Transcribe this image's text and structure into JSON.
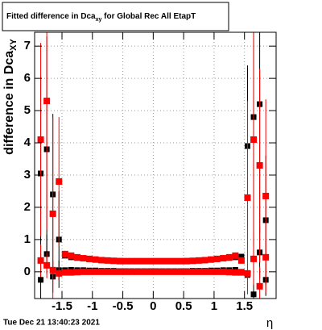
{
  "chart_data": {
    "type": "errorbar",
    "title_main": "Fitted difference in Dca",
    "title_sub": "xy",
    "title_rest": " for Global Rec All EtapT",
    "y_label_main": "difference in Dca",
    "y_label_sub": "XY",
    "x_label": "η",
    "x": [
      -1.85,
      -1.75,
      -1.65,
      -1.55,
      -1.45,
      -1.35,
      -1.25,
      -1.15,
      -1.05,
      -0.95,
      -0.85,
      -0.75,
      -0.65,
      -0.55,
      -0.45,
      -0.35,
      -0.25,
      -0.15,
      -0.05,
      0.05,
      0.15,
      0.25,
      0.35,
      0.45,
      0.55,
      0.65,
      0.75,
      0.85,
      0.95,
      1.05,
      1.15,
      1.25,
      1.35,
      1.45,
      1.55,
      1.65,
      1.75,
      1.85
    ],
    "series": [
      {
        "color": "#000000",
        "values": [
          3.05,
          3.8,
          2.4,
          1.0,
          0.5,
          0.45,
          0.43,
          0.41,
          0.39,
          0.37,
          0.36,
          0.35,
          0.34,
          0.34,
          0.33,
          0.33,
          0.33,
          0.33,
          0.33,
          0.33,
          0.33,
          0.33,
          0.33,
          0.33,
          0.34,
          0.34,
          0.35,
          0.36,
          0.37,
          0.39,
          0.41,
          0.43,
          0.45,
          0.47,
          3.9,
          4.8,
          5.2,
          1.6
        ],
        "errors": [
          3.0,
          3.5,
          2.5,
          1.5,
          0.05,
          0.03,
          0.03,
          0.03,
          0.03,
          0.03,
          0.03,
          0.03,
          0.03,
          0.03,
          0.03,
          0.03,
          0.03,
          0.03,
          0.03,
          0.03,
          0.03,
          0.03,
          0.03,
          0.03,
          0.03,
          0.03,
          0.03,
          0.03,
          0.03,
          0.03,
          0.03,
          0.03,
          0.03,
          0.05,
          2.5,
          4.0,
          4.0,
          2.0
        ]
      },
      {
        "color": "#000000",
        "values": [
          -0.25,
          0.55,
          -0.15,
          0.05,
          0.05,
          0.06,
          0.05,
          0.05,
          0.04,
          0.04,
          0.03,
          0.03,
          0.03,
          0.02,
          0.02,
          0.02,
          0.02,
          0.02,
          0.02,
          0.02,
          0.02,
          0.02,
          0.02,
          0.02,
          0.02,
          0.03,
          0.03,
          0.03,
          0.04,
          0.04,
          0.05,
          0.05,
          0.06,
          0.0,
          -0.1,
          -0.7,
          0.6,
          -0.25
        ],
        "errors": [
          0.8,
          0.6,
          0.5,
          0.3,
          0.03,
          0.02,
          0.02,
          0.02,
          0.02,
          0.02,
          0.02,
          0.02,
          0.02,
          0.02,
          0.02,
          0.02,
          0.02,
          0.02,
          0.02,
          0.02,
          0.02,
          0.02,
          0.02,
          0.02,
          0.02,
          0.02,
          0.02,
          0.02,
          0.02,
          0.02,
          0.02,
          0.02,
          0.02,
          0.04,
          0.5,
          1.0,
          0.8,
          0.5
        ]
      },
      {
        "color": "#ff0000",
        "values": [
          4.1,
          5.3,
          1.8,
          2.8,
          0.55,
          0.5,
          0.45,
          0.42,
          0.4,
          0.38,
          0.36,
          0.35,
          0.34,
          0.33,
          0.33,
          0.33,
          0.33,
          0.33,
          0.33,
          0.33,
          0.33,
          0.33,
          0.33,
          0.33,
          0.33,
          0.34,
          0.35,
          0.36,
          0.38,
          0.4,
          0.42,
          0.45,
          0.5,
          0.35,
          2.3,
          4.1,
          3.3,
          2.35
        ],
        "errors": [
          3.0,
          4.0,
          3.0,
          2.0,
          0.1,
          0.03,
          0.03,
          0.03,
          0.03,
          0.03,
          0.03,
          0.03,
          0.03,
          0.03,
          0.03,
          0.03,
          0.03,
          0.03,
          0.03,
          0.03,
          0.03,
          0.03,
          0.03,
          0.03,
          0.03,
          0.03,
          0.03,
          0.03,
          0.03,
          0.03,
          0.03,
          0.03,
          0.03,
          0.1,
          3.0,
          4.0,
          3.0,
          3.0
        ]
      },
      {
        "color": "#ff0000",
        "values": [
          0.35,
          0.2,
          0.05,
          -0.05,
          -0.02,
          -0.02,
          -0.01,
          0,
          0,
          0,
          0,
          0,
          0,
          0,
          0,
          0,
          0,
          0,
          0,
          0,
          0,
          0,
          0,
          0,
          0,
          0,
          0,
          0,
          0,
          0,
          0,
          -0.01,
          -0.02,
          -0.02,
          -0.05,
          0.4,
          -0.45,
          0.45
        ],
        "errors": [
          0.5,
          0.4,
          0.3,
          0.2,
          0.03,
          0.02,
          0.02,
          0.02,
          0.02,
          0.02,
          0.02,
          0.02,
          0.02,
          0.02,
          0.02,
          0.02,
          0.02,
          0.02,
          0.02,
          0.02,
          0.02,
          0.02,
          0.02,
          0.02,
          0.02,
          0.02,
          0.02,
          0.02,
          0.02,
          0.02,
          0.02,
          0.02,
          0.02,
          0.03,
          0.3,
          0.8,
          0.6,
          0.5
        ]
      }
    ],
    "xlim": [
      -1.95,
      2.02
    ],
    "ylim": [
      -0.83,
      7.43
    ],
    "xticks": [
      -1.5,
      -1,
      -0.5,
      0,
      0.5,
      1,
      1.5
    ],
    "yticks": [
      0,
      1,
      2,
      3,
      4,
      5,
      6,
      7
    ],
    "grid": true
  },
  "timestamp": "Tue Dec 21 13:40:23 2021"
}
